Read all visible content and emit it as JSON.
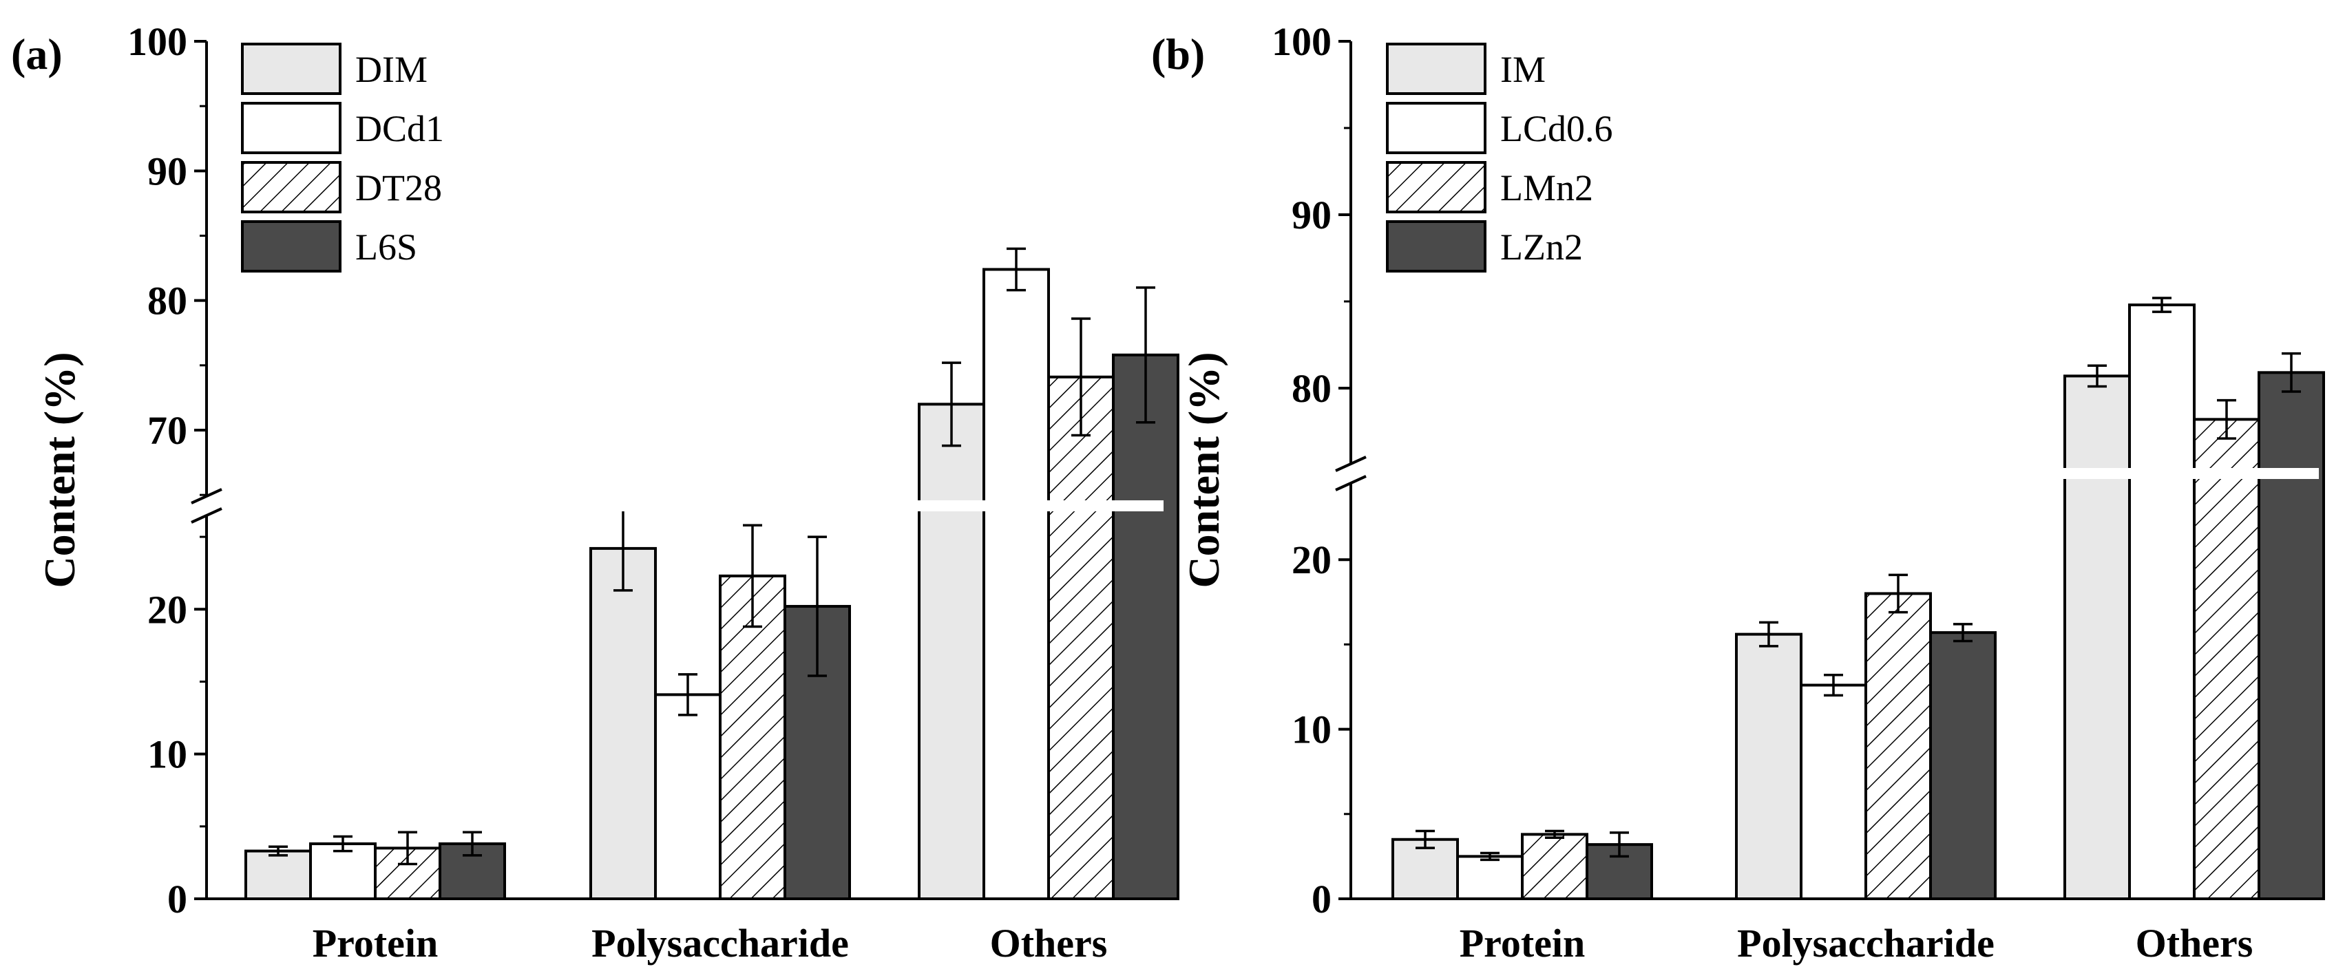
{
  "figure": {
    "layout": "two-panel grouped bar chart with broken y-axis"
  },
  "chart_data": [
    {
      "type": "bar",
      "panel_label": "(a)",
      "title": "",
      "xlabel": "",
      "ylabel": "Content (%)",
      "categories": [
        "Protein",
        "Polysaccharide",
        "Others"
      ],
      "broken_axis": true,
      "ylim_lower": [
        0,
        27
      ],
      "ylim_upper": [
        64,
        100
      ],
      "yticks_lower": [
        "0",
        "10",
        "20"
      ],
      "yticks_upper": [
        "70",
        "80",
        "90",
        "100"
      ],
      "ytick_values_lower": [
        0,
        10,
        20
      ],
      "ytick_values_upper": [
        70,
        80,
        90,
        100
      ],
      "series": [
        {
          "name": "DIM",
          "style": "light",
          "values": [
            3.3,
            24.2,
            72.0
          ],
          "errors": [
            0.3,
            2.9,
            3.2
          ]
        },
        {
          "name": "DCd1",
          "style": "white",
          "values": [
            3.8,
            14.1,
            82.4
          ],
          "errors": [
            0.5,
            1.4,
            1.6
          ]
        },
        {
          "name": "DT28",
          "style": "hatched",
          "values": [
            3.5,
            22.3,
            74.1
          ],
          "errors": [
            1.1,
            3.5,
            4.5
          ]
        },
        {
          "name": "L6S",
          "style": "dark",
          "values": [
            3.8,
            20.2,
            75.8
          ],
          "errors": [
            0.8,
            4.8,
            5.2
          ]
        }
      ]
    },
    {
      "type": "bar",
      "panel_label": "(b)",
      "title": "",
      "xlabel": "",
      "ylabel": "Content (%)",
      "categories": [
        "Protein",
        "Polysaccharide",
        "Others"
      ],
      "broken_axis": true,
      "ylim_lower": [
        0,
        25
      ],
      "ylim_upper": [
        75,
        100
      ],
      "yticks_lower": [
        "0",
        "10",
        "20"
      ],
      "yticks_upper": [
        "80",
        "90",
        "100"
      ],
      "ytick_values_lower": [
        0,
        10,
        20
      ],
      "ytick_values_upper": [
        80,
        90,
        100
      ],
      "series": [
        {
          "name": "IM",
          "style": "light",
          "values": [
            3.5,
            15.6,
            80.7
          ],
          "errors": [
            0.5,
            0.7,
            0.6
          ]
        },
        {
          "name": "LCd0.6",
          "style": "white",
          "values": [
            2.5,
            12.6,
            84.8
          ],
          "errors": [
            0.2,
            0.6,
            0.4
          ]
        },
        {
          "name": "LMn2",
          "style": "hatched",
          "values": [
            3.8,
            18.0,
            78.2
          ],
          "errors": [
            0.2,
            1.1,
            1.1
          ]
        },
        {
          "name": "LZn2",
          "style": "dark",
          "values": [
            3.2,
            15.7,
            80.9
          ],
          "errors": [
            0.7,
            0.5,
            1.1
          ]
        }
      ]
    }
  ],
  "colors": {
    "light": "#e8e8e8",
    "white": "#ffffff",
    "dark": "#4a4a4a",
    "outline": "#000000"
  }
}
